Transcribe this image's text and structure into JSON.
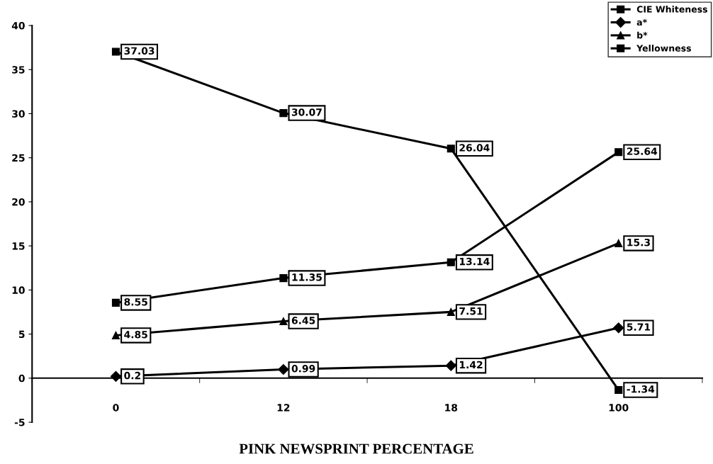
{
  "chart_data": {
    "type": "line",
    "xlabel": "PINK NEWSPRINT PERCENTAGE",
    "categories": [
      "0",
      "12",
      "18",
      "100"
    ],
    "series": [
      {
        "name": "CIE Whiteness",
        "color": "#000000",
        "marker": "square",
        "values": [
          37.03,
          30.07,
          26.04,
          -1.34
        ]
      },
      {
        "name": "a*",
        "color": "#000000",
        "marker": "diamond",
        "values": [
          0.2,
          0.99,
          1.42,
          5.71
        ]
      },
      {
        "name": "b*",
        "color": "#000000",
        "marker": "triangle",
        "values": [
          4.85,
          6.45,
          7.51,
          15.3
        ]
      },
      {
        "name": "Yellowness",
        "color": "#000000",
        "marker": "square",
        "values": [
          8.55,
          11.35,
          13.14,
          25.64
        ]
      }
    ],
    "ylim": [
      -5,
      40
    ],
    "yticks": [
      -5,
      0,
      5,
      10,
      15,
      20,
      25,
      30,
      35,
      40
    ],
    "data_labels": true,
    "legend": "top right",
    "line_style": "solid"
  }
}
